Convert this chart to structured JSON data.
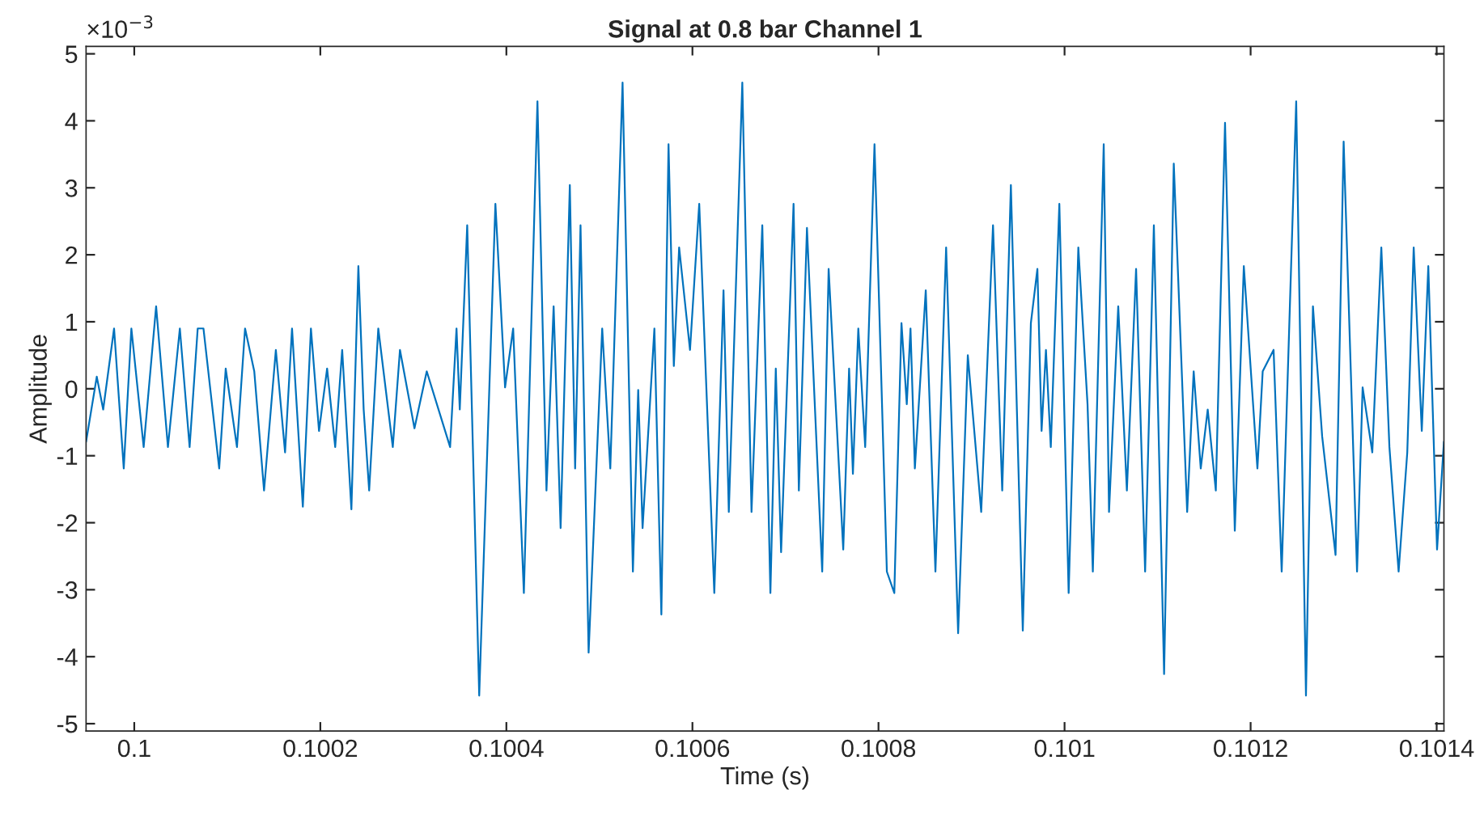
{
  "chart_data": {
    "type": "line",
    "title": "Signal at 0.8 bar Channel 1",
    "xlabel": "Time (s)",
    "ylabel": "Amplitude",
    "annotations": [
      "×10$^{−3}$"
    ],
    "xlim": [
      0.0999482,
      0.1014078
    ],
    "xticks": [
      {
        "value": 0.1,
        "label": "0.1"
      },
      {
        "value": 0.1002,
        "label": "0.1002"
      },
      {
        "value": 0.1004,
        "label": "0.1004"
      },
      {
        "value": 0.1006,
        "label": "0.1006"
      },
      {
        "value": 0.1008,
        "label": "0.1008"
      },
      {
        "value": 0.101,
        "label": "0.101"
      },
      {
        "value": 0.1012,
        "label": "0.1012"
      },
      {
        "value": 0.1014,
        "label": "0.1014"
      }
    ],
    "ylim": [
      -5.11,
      5.11
    ],
    "yticks": [
      -5,
      -4,
      -3,
      -2,
      -1,
      0,
      1,
      2,
      3,
      4,
      5
    ],
    "grid": false,
    "legend": false,
    "marker": "none",
    "line_style": "solid",
    "series": [
      {
        "color": "#0072bd",
        "x": [
          0.0999482,
          0.0999597,
          0.0999666,
          0.0999783,
          0.0999887,
          0.0999969,
          0.1000101,
          0.1000235,
          0.1000362,
          0.100049,
          0.1000595,
          0.1000682,
          0.1000744,
          0.1000913,
          0.1000983,
          0.1001104,
          0.1001191,
          0.100129,
          0.1001395,
          0.1001522,
          0.1001621,
          0.1001696,
          0.1001812,
          0.1001899,
          0.1001986,
          0.1002073,
          0.100216,
          0.1002235,
          0.1002334,
          0.1002409,
          0.1002466,
          0.1002525,
          0.1002623,
          0.1002779,
          0.1002856,
          0.1003012,
          0.1003144,
          0.1003395,
          0.1003464,
          0.1003499,
          0.1003579,
          0.1003708,
          0.1003882,
          0.1003986,
          0.1004073,
          0.1004188,
          0.1004334,
          0.1004431,
          0.1004508,
          0.1004583,
          0.1004682,
          0.1004739,
          0.1004797,
          0.1004884,
          0.100503,
          0.1005117,
          0.1005249,
          0.100536,
          0.1005417,
          0.1005464,
          0.1005591,
          0.1005666,
          0.1005743,
          0.10058,
          0.1005857,
          0.1005974,
          0.1006073,
          0.1006235,
          0.1006334,
          0.1006391,
          0.1006536,
          0.1006635,
          0.1006751,
          0.1006838,
          0.1006896,
          0.1006953,
          0.1007087,
          0.1007144,
          0.1007231,
          0.1007395,
          0.1007464,
          0.1007621,
          0.1007684,
          0.1007725,
          0.1007783,
          0.1007857,
          0.1007957,
          0.100809,
          0.100817,
          0.1008247,
          0.1008304,
          0.1008344,
          0.1008391,
          0.1008508,
          0.1008612,
          0.1008727,
          0.1008856,
          0.100896,
          0.1009104,
          0.1009231,
          0.100933,
          0.1009423,
          0.1009551,
          0.1009638,
          0.1009708,
          0.1009753,
          0.10098,
          0.1009852,
          0.1009944,
          0.1010044,
          0.1010148,
          0.1010247,
          0.1010304,
          0.1010421,
          0.1010478,
          0.1010577,
          0.101067,
          0.1010769,
          0.1010866,
          0.101096,
          0.101107,
          0.1011174,
          0.1011318,
          0.1011388,
          0.1011464,
          0.1011539,
          0.1011626,
          0.1011725,
          0.101183,
          0.1011927,
          0.1012073,
          0.101213,
          0.1012247,
          0.1012334,
          0.101249,
          0.1012595,
          0.101267,
          0.1012769,
          0.1012913,
          0.1013,
          0.1013144,
          0.1013204,
          0.1013308,
          0.1013405,
          0.1013492,
          0.1013591,
          0.1013684,
          0.1013753,
          0.101384,
          0.101391,
          0.1014004,
          0.1014078
        ],
        "values": [
          -0.79,
          0.18,
          -0.31,
          0.9,
          -1.19,
          0.9,
          -0.87,
          1.23,
          -0.87,
          0.9,
          -0.87,
          0.9,
          0.9,
          -1.19,
          0.3,
          -0.87,
          0.9,
          0.26,
          -1.52,
          0.58,
          -0.95,
          0.9,
          -1.76,
          0.9,
          -0.63,
          0.3,
          -0.87,
          0.58,
          -1.8,
          1.83,
          -0.31,
          -1.52,
          0.9,
          -0.87,
          0.58,
          -0.59,
          0.26,
          -0.87,
          0.9,
          -0.31,
          2.44,
          -4.58,
          2.76,
          0.02,
          0.9,
          -3.05,
          4.29,
          -1.52,
          1.23,
          -2.08,
          3.04,
          -1.19,
          2.44,
          -3.94,
          0.9,
          -1.19,
          4.57,
          -2.73,
          -0.02,
          -2.08,
          0.9,
          -3.37,
          3.65,
          0.34,
          2.11,
          0.58,
          2.76,
          -3.05,
          1.47,
          -1.84,
          4.57,
          -1.84,
          2.44,
          -3.05,
          0.3,
          -2.44,
          2.76,
          -1.52,
          2.4,
          -2.73,
          1.79,
          -2.4,
          0.3,
          -1.27,
          0.9,
          -0.87,
          3.65,
          -2.73,
          -3.05,
          0.98,
          -0.23,
          0.9,
          -1.19,
          1.47,
          -2.73,
          2.11,
          -3.65,
          0.5,
          -1.84,
          2.44,
          -1.52,
          3.04,
          -3.61,
          0.98,
          1.79,
          -0.63,
          0.58,
          -0.87,
          2.76,
          -3.05,
          2.11,
          -0.23,
          -2.73,
          3.65,
          -1.84,
          1.23,
          -1.52,
          1.79,
          -2.73,
          2.44,
          -4.26,
          3.36,
          -1.84,
          0.26,
          -1.19,
          -0.31,
          -1.52,
          3.97,
          -2.12,
          1.83,
          -1.19,
          0.26,
          0.58,
          -2.73,
          4.29,
          -4.58,
          1.23,
          -0.71,
          -2.48,
          3.69,
          -2.73,
          0.02,
          -0.95,
          2.11,
          -0.87,
          -2.73,
          -0.95,
          2.11,
          -0.63,
          1.83,
          -2.4,
          -0.79
        ]
      }
    ]
  }
}
